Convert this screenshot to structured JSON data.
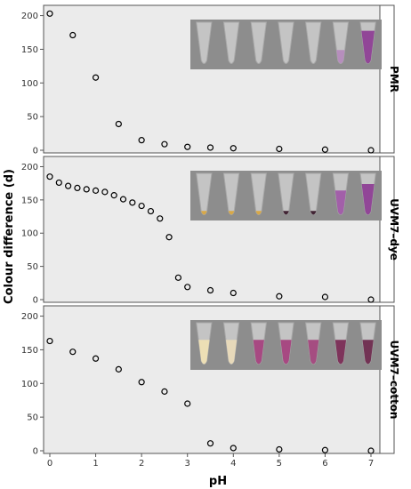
{
  "chart_data": {
    "type": "scatter",
    "xlabel": "pH",
    "ylabel": "Colour difference (d)",
    "xlim": [
      0,
      7
    ],
    "ylim": [
      0,
      200
    ],
    "x_ticks": [
      0,
      1,
      2,
      3,
      4,
      5,
      6,
      7
    ],
    "y_ticks": [
      0,
      50,
      100,
      150,
      200
    ],
    "grid": false,
    "colors": {
      "panel_bg": "#ebebeb",
      "marker": "#000000",
      "strip_bg": "#ffffff"
    },
    "panels": [
      {
        "label": "PMR",
        "points": [
          {
            "x": 0,
            "y": 203
          },
          {
            "x": 0.5,
            "y": 171
          },
          {
            "x": 1,
            "y": 108
          },
          {
            "x": 1.5,
            "y": 39
          },
          {
            "x": 2,
            "y": 15
          },
          {
            "x": 2.5,
            "y": 9
          },
          {
            "x": 3,
            "y": 5
          },
          {
            "x": 3.5,
            "y": 4
          },
          {
            "x": 4,
            "y": 3
          },
          {
            "x": 5,
            "y": 2
          },
          {
            "x": 6,
            "y": 1
          },
          {
            "x": 7,
            "y": 0
          }
        ],
        "tubes": [
          {
            "liquid": "#cfcfcf",
            "fill": 0.0
          },
          {
            "liquid": "#cfcfcf",
            "fill": 0.0
          },
          {
            "liquid": "#cfcfcf",
            "fill": 0.0
          },
          {
            "liquid": "#cfcfcf",
            "fill": 0.0
          },
          {
            "liquid": "#cfcfcf",
            "fill": 0.0
          },
          {
            "liquid": "#b58bbd",
            "fill": 0.35
          },
          {
            "liquid": "#8e3f95",
            "fill": 0.8
          }
        ]
      },
      {
        "label": "UVM7–dye",
        "points": [
          {
            "x": 0,
            "y": 185
          },
          {
            "x": 0.2,
            "y": 176
          },
          {
            "x": 0.4,
            "y": 171
          },
          {
            "x": 0.6,
            "y": 168
          },
          {
            "x": 0.8,
            "y": 166
          },
          {
            "x": 1,
            "y": 164
          },
          {
            "x": 1.2,
            "y": 162
          },
          {
            "x": 1.4,
            "y": 157
          },
          {
            "x": 1.6,
            "y": 151
          },
          {
            "x": 1.8,
            "y": 146
          },
          {
            "x": 2,
            "y": 141
          },
          {
            "x": 2.2,
            "y": 133
          },
          {
            "x": 2.4,
            "y": 122
          },
          {
            "x": 2.6,
            "y": 94
          },
          {
            "x": 2.8,
            "y": 33
          },
          {
            "x": 3,
            "y": 19
          },
          {
            "x": 3.5,
            "y": 14
          },
          {
            "x": 4,
            "y": 10
          },
          {
            "x": 5,
            "y": 5
          },
          {
            "x": 6,
            "y": 4
          },
          {
            "x": 7,
            "y": 0
          }
        ],
        "tubes": [
          {
            "liquid": "#d9a640",
            "fill": 0.12
          },
          {
            "liquid": "#d9a640",
            "fill": 0.12
          },
          {
            "liquid": "#d9a640",
            "fill": 0.12
          },
          {
            "liquid": "#3a1b2c",
            "fill": 0.12
          },
          {
            "liquid": "#3a1b2c",
            "fill": 0.12
          },
          {
            "liquid": "#a05aa8",
            "fill": 0.6
          },
          {
            "liquid": "#8e3f95",
            "fill": 0.75
          }
        ]
      },
      {
        "label": "UVM7–cotton",
        "points": [
          {
            "x": 0,
            "y": 163
          },
          {
            "x": 0.5,
            "y": 147
          },
          {
            "x": 1,
            "y": 137
          },
          {
            "x": 1.5,
            "y": 121
          },
          {
            "x": 2,
            "y": 102
          },
          {
            "x": 2.5,
            "y": 88
          },
          {
            "x": 3,
            "y": 70
          },
          {
            "x": 3.5,
            "y": 11
          },
          {
            "x": 4,
            "y": 4
          },
          {
            "x": 5,
            "y": 2
          },
          {
            "x": 6,
            "y": 1
          },
          {
            "x": 7,
            "y": 0
          }
        ],
        "tubes": [
          {
            "liquid": "#efe0b4",
            "fill": 0.6
          },
          {
            "liquid": "#e9dab9",
            "fill": 0.6
          },
          {
            "liquid": "#a5427e",
            "fill": 0.6
          },
          {
            "liquid": "#a5427e",
            "fill": 0.6
          },
          {
            "liquid": "#a3477d",
            "fill": 0.6
          },
          {
            "liquid": "#7a2c55",
            "fill": 0.6
          },
          {
            "liquid": "#6e2b4e",
            "fill": 0.6
          }
        ]
      }
    ]
  }
}
